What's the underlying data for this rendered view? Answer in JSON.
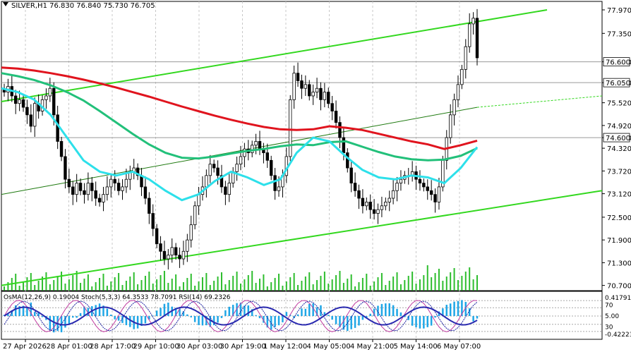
{
  "header": {
    "symbol_line": "SILVER,H1  76.830 76.840 75.730 76.705",
    "dropdown_icon": "triangle-down-icon"
  },
  "osc_header": "OsMA(12,26,9) 0.19004  Stoch(5,3,3) 64.3533 78.7091  RSI(14) 69.2326",
  "colors": {
    "background": "#ffffff",
    "grid": "#c8c8c8",
    "candle": "#000000",
    "ema_red": "#e0141e",
    "ema_green": "#22c07a",
    "ema_cyan": "#2de0ea",
    "channel_line": "#33d81f",
    "channel_mid": "#1f7a10",
    "volume": "#2ebd2e",
    "osma_hist": "#1fa6e6",
    "stoch_main": "#c03ba0",
    "stoch_signal": "#1a1fa0",
    "rsi": "#2a2ab0",
    "price_label_bg": "#ffffff"
  },
  "chart_data": {
    "type": "candlestick",
    "symbol": "SILVER",
    "timeframe": "H1",
    "ylim": [
      70.6,
      77.97
    ],
    "y_ticks": [
      77.97,
      77.35,
      76.6,
      76.05,
      75.52,
      74.92,
      74.6,
      74.32,
      73.72,
      73.12,
      72.5,
      71.9,
      71.3,
      70.7
    ],
    "y_tick_labels": [
      "77.970",
      "77.350",
      "76.600",
      "76.050",
      "75.520",
      "74.920",
      "74.600",
      "74.320",
      "73.720",
      "73.120",
      "72.500",
      "71.900",
      "71.300",
      "70.700"
    ],
    "highlighted_levels": [
      76.6,
      76.05,
      74.6
    ],
    "x_tick_labels": [
      "27 Apr 2026",
      "28 Apr 01:00",
      "28 Apr 17:00",
      "29 Apr 10:00",
      "30 Apr 03:00",
      "30 Apr 19:00",
      "1 May 12:00",
      "4 May 05:00",
      "4 May 21:00",
      "5 May 14:00",
      "6 May 07:00"
    ],
    "candles_close_path": [
      75.8,
      75.95,
      75.7,
      75.5,
      75.6,
      75.4,
      75.2,
      74.9,
      75.5,
      75.3,
      75.6,
      75.7,
      75.9,
      75.2,
      74.5,
      74.1,
      73.5,
      73.3,
      73.1,
      73.4,
      73.2,
      73.1,
      73.4,
      73.2,
      73.0,
      72.9,
      73.1,
      73.3,
      73.5,
      73.4,
      73.2,
      73.3,
      73.5,
      73.7,
      73.8,
      73.6,
      73.3,
      73.0,
      72.6,
      72.2,
      71.8,
      71.6,
      71.4,
      71.5,
      71.7,
      71.5,
      71.4,
      71.6,
      71.9,
      72.3,
      72.8,
      73.1,
      73.3,
      73.6,
      73.9,
      73.8,
      73.6,
      73.3,
      73.1,
      73.4,
      73.7,
      73.9,
      74.1,
      74.3,
      74.2,
      74.4,
      74.5,
      74.3,
      74.2,
      74.0,
      73.6,
      73.2,
      73.3,
      73.6,
      74.1,
      75.6,
      76.3,
      76.1,
      75.9,
      76.0,
      75.7,
      75.8,
      75.9,
      75.6,
      75.8,
      75.5,
      75.3,
      75.0,
      74.6,
      74.2,
      73.8,
      73.4,
      73.2,
      73.0,
      72.8,
      72.9,
      72.7,
      72.6,
      72.7,
      72.8,
      72.9,
      73.0,
      73.2,
      73.4,
      73.5,
      73.6,
      73.6,
      73.7,
      73.5,
      73.4,
      73.3,
      73.2,
      73.1,
      72.9,
      73.3,
      74.0,
      74.6,
      75.2,
      75.6,
      76.0,
      76.4,
      77.0,
      77.6,
      77.75,
      76.705
    ],
    "ema_red": [
      76.45,
      76.42,
      76.37,
      76.3,
      76.22,
      76.13,
      76.03,
      75.92,
      75.8,
      75.68,
      75.55,
      75.42,
      75.3,
      75.18,
      75.07,
      74.97,
      74.88,
      74.82,
      74.8,
      74.82,
      74.9,
      74.86,
      74.8,
      74.7,
      74.6,
      74.5,
      74.42,
      74.3,
      74.4,
      74.52
    ],
    "ema_green": [
      76.3,
      76.22,
      76.12,
      75.98,
      75.8,
      75.58,
      75.3,
      75.0,
      74.7,
      74.42,
      74.2,
      74.07,
      74.05,
      74.1,
      74.18,
      74.25,
      74.3,
      74.37,
      74.42,
      74.4,
      74.48,
      74.5,
      74.36,
      74.22,
      74.1,
      74.03,
      74.0,
      74.02,
      74.12,
      74.32
    ],
    "ema_cyan": [
      75.9,
      75.8,
      75.6,
      75.2,
      74.6,
      74.0,
      73.7,
      73.6,
      73.7,
      73.5,
      73.2,
      72.95,
      73.1,
      73.45,
      73.7,
      73.55,
      73.35,
      73.5,
      74.2,
      74.6,
      74.5,
      74.1,
      73.75,
      73.55,
      73.5,
      73.6,
      73.55,
      73.4,
      73.8,
      74.35
    ],
    "ema_x_fraction_note_excluded": null,
    "channel": {
      "upper": {
        "from": [
          "27 Apr 2026",
          75.55
        ],
        "to": [
          "6 May 07:00",
          77.97
        ]
      },
      "lower": {
        "from": [
          "27 Apr 2026",
          70.7
        ],
        "to": [
          "6 May 07:00",
          73.2
        ]
      },
      "middle": {
        "from": [
          "27 Apr 2026",
          73.1
        ],
        "to": [
          "6 May 07:00",
          75.55
        ]
      }
    },
    "oscillator": {
      "osma": 0.19004,
      "stoch_main": 64.3533,
      "stoch_signal": 78.7091,
      "rsi": 69.2326,
      "scale_labels": [
        "0.41791",
        "70",
        "5.00",
        "30",
        "-0.42223"
      ]
    }
  }
}
